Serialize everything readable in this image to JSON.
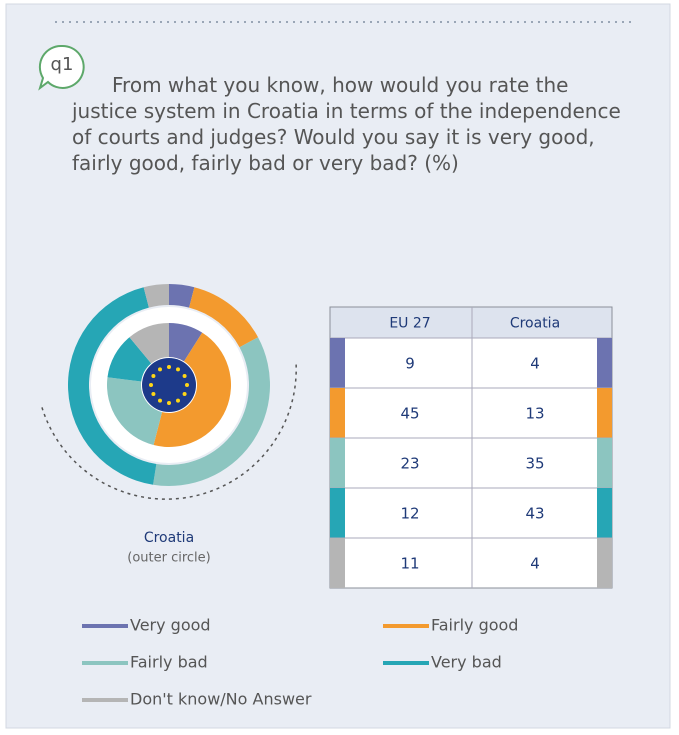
{
  "chart_data": {
    "type": "donut",
    "badge": "q1",
    "title": "From what you know, how would you rate the justice system in Croatia in terms of the independence of courts and judges? Would you say it is very good, fairly good, fairly bad or very bad? (%)",
    "annotation": "Croatia",
    "annotation_note": "(outer circle)",
    "categories": [
      "Very good",
      "Fairly good",
      "Fairly bad",
      "Very bad",
      "Don't know/No Answer"
    ],
    "colors": [
      "#6c73b0",
      "#f39a2e",
      "#8cc5c0",
      "#26a6b5",
      "#b5b5b5"
    ],
    "series": [
      {
        "name": "EU 27",
        "ring": "inner",
        "values": [
          9,
          45,
          23,
          12,
          11
        ]
      },
      {
        "name": "Croatia",
        "ring": "outer",
        "values": [
          4,
          13,
          35,
          43,
          4
        ]
      }
    ]
  }
}
